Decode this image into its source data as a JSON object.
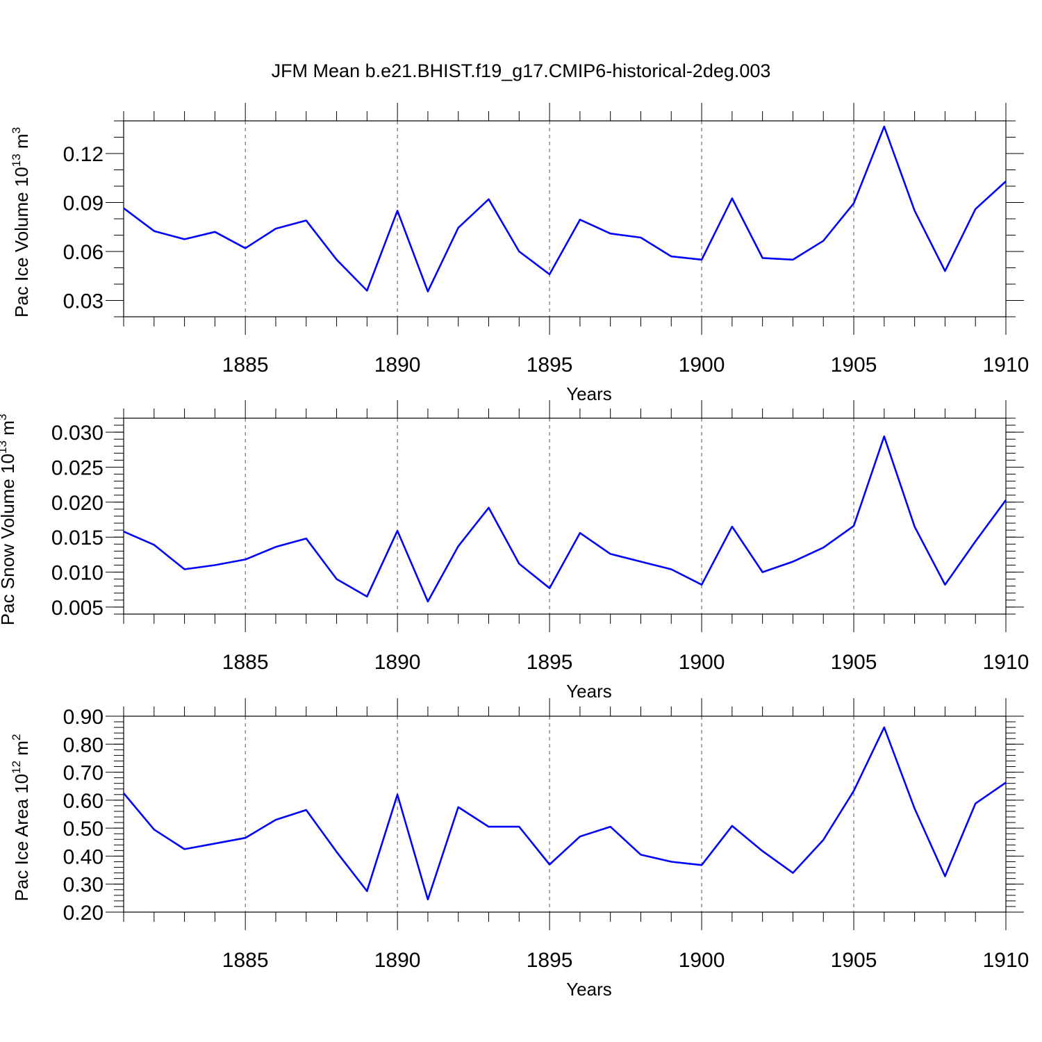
{
  "title": "JFM Mean b.e21.BHIST.f19_g17.CMIP6-historical-2deg.003",
  "colors": {
    "series": "#0000ff",
    "axes": "#000000",
    "grid": "#555555"
  },
  "chart_data": [
    {
      "type": "line",
      "xlabel": "Years",
      "ylabel": {
        "text": "Pac Ice Volume 10",
        "exponent": "13",
        "unit": " m",
        "unit_exponent": "3"
      },
      "xlim": [
        1881,
        1910
      ],
      "ylim": [
        0.02,
        0.14
      ],
      "x_ticks": [
        1885,
        1890,
        1895,
        1900,
        1905,
        1910
      ],
      "y_ticks": [
        0.03,
        0.06,
        0.09,
        0.12
      ],
      "y_tick_labels": [
        "0.03",
        "0.06",
        "0.09",
        "0.12"
      ],
      "y_minor_step": 0.01,
      "grid": "vertical dashed at major x ticks",
      "x": [
        1881,
        1882,
        1883,
        1884,
        1885,
        1886,
        1887,
        1888,
        1889,
        1890,
        1891,
        1892,
        1893,
        1894,
        1895,
        1896,
        1897,
        1898,
        1899,
        1900,
        1901,
        1902,
        1903,
        1904,
        1905,
        1906,
        1907,
        1908,
        1909,
        1910
      ],
      "values": [
        0.0865,
        0.0725,
        0.0675,
        0.072,
        0.062,
        0.074,
        0.079,
        0.055,
        0.036,
        0.085,
        0.0355,
        0.0745,
        0.092,
        0.06,
        0.046,
        0.0795,
        0.071,
        0.0685,
        0.057,
        0.055,
        0.0925,
        0.056,
        0.055,
        0.0665,
        0.0895,
        0.1365,
        0.085,
        0.048,
        0.086,
        0.103
      ]
    },
    {
      "type": "line",
      "xlabel": "Years",
      "ylabel": {
        "text": "Pac Snow Volume 10",
        "exponent": "13",
        "unit": " m",
        "unit_exponent": "3"
      },
      "xlim": [
        1881,
        1910
      ],
      "ylim": [
        0.004,
        0.032
      ],
      "x_ticks": [
        1885,
        1890,
        1895,
        1900,
        1905,
        1910
      ],
      "y_ticks": [
        0.005,
        0.01,
        0.015,
        0.02,
        0.025,
        0.03
      ],
      "y_tick_labels": [
        "0.005",
        "0.010",
        "0.015",
        "0.020",
        "0.025",
        "0.030"
      ],
      "y_minor_step": 0.001,
      "grid": "vertical dashed at major x ticks",
      "x": [
        1881,
        1882,
        1883,
        1884,
        1885,
        1886,
        1887,
        1888,
        1889,
        1890,
        1891,
        1892,
        1893,
        1894,
        1895,
        1896,
        1897,
        1898,
        1899,
        1900,
        1901,
        1902,
        1903,
        1904,
        1905,
        1906,
        1907,
        1908,
        1909,
        1910
      ],
      "values": [
        0.0158,
        0.0139,
        0.0104,
        0.011,
        0.0118,
        0.0136,
        0.0148,
        0.009,
        0.0065,
        0.0159,
        0.0058,
        0.0137,
        0.0192,
        0.0112,
        0.0077,
        0.0156,
        0.0126,
        0.0115,
        0.0104,
        0.0082,
        0.0165,
        0.01,
        0.0115,
        0.0135,
        0.0166,
        0.0294,
        0.0165,
        0.0082,
        0.0144,
        0.0203
      ]
    },
    {
      "type": "line",
      "xlabel": "Years",
      "ylabel": {
        "text": "Pac Ice Area 10",
        "exponent": "12",
        "unit": " m",
        "unit_exponent": "2"
      },
      "xlim": [
        1881,
        1910
      ],
      "ylim": [
        0.2,
        0.9
      ],
      "x_ticks": [
        1885,
        1890,
        1895,
        1900,
        1905,
        1910
      ],
      "y_ticks": [
        0.2,
        0.3,
        0.4,
        0.5,
        0.6,
        0.7,
        0.8,
        0.9
      ],
      "y_tick_labels": [
        "0.20",
        "0.30",
        "0.40",
        "0.50",
        "0.60",
        "0.70",
        "0.80",
        "0.90"
      ],
      "y_minor_step": 0.02,
      "grid": "vertical dashed at major x ticks",
      "x": [
        1881,
        1882,
        1883,
        1884,
        1885,
        1886,
        1887,
        1888,
        1889,
        1890,
        1891,
        1892,
        1893,
        1894,
        1895,
        1896,
        1897,
        1898,
        1899,
        1900,
        1901,
        1902,
        1903,
        1904,
        1905,
        1906,
        1907,
        1908,
        1909,
        1910
      ],
      "values": [
        0.625,
        0.495,
        0.425,
        0.445,
        0.465,
        0.53,
        0.565,
        0.415,
        0.275,
        0.62,
        0.245,
        0.575,
        0.505,
        0.505,
        0.37,
        0.47,
        0.505,
        0.405,
        0.38,
        0.368,
        0.508,
        0.418,
        0.34,
        0.458,
        0.633,
        0.86,
        0.57,
        0.328,
        0.588,
        0.663
      ]
    }
  ]
}
